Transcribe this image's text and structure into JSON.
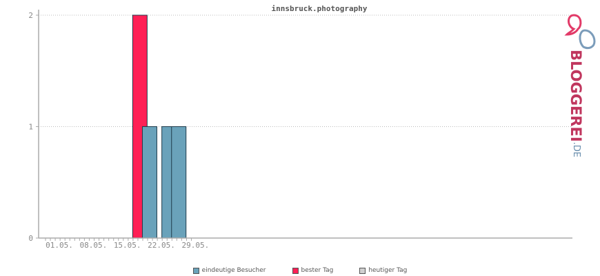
{
  "logo": {
    "main": "BLOGGEREI",
    "tld": ".DE"
  },
  "legend": {
    "items": [
      {
        "label": "eindeutige Besucher",
        "color": "#6aa2ba"
      },
      {
        "label": "bester Tag",
        "color": "#ff1f55"
      },
      {
        "label": "heutiger Tag",
        "color": "#d0d0d0"
      }
    ]
  },
  "chart_data": {
    "type": "bar",
    "title": "innsbruck.photography",
    "xlabel": "",
    "ylabel": "",
    "ylim": [
      0,
      2
    ],
    "yticks": [
      0,
      1,
      2
    ],
    "grid": true,
    "legend_position": "bottom",
    "x_tick_labels": [
      "01.05.",
      "08.05.",
      "15.05.",
      "22.05.",
      "29.05."
    ],
    "days": [
      "01.05.",
      "02.05.",
      "03.05.",
      "04.05.",
      "05.05.",
      "06.05.",
      "07.05.",
      "08.05.",
      "09.05.",
      "10.05.",
      "11.05.",
      "12.05.",
      "13.05.",
      "14.05.",
      "15.05.",
      "16.05.",
      "17.05.",
      "18.05.",
      "19.05.",
      "20.05.",
      "21.05.",
      "22.05.",
      "23.05.",
      "24.05.",
      "25.05.",
      "26.05.",
      "27.05.",
      "28.05.",
      "29.05.",
      "30.05.",
      "31.05."
    ],
    "values": [
      0,
      0,
      0,
      0,
      0,
      0,
      0,
      0,
      0,
      0,
      0,
      0,
      0,
      0,
      0,
      0,
      0,
      2,
      0,
      1,
      0,
      0,
      0,
      1,
      0,
      1,
      0,
      0,
      0,
      0,
      0
    ],
    "best_day": "18.05.",
    "colors": {
      "visitors": "#6aa2ba",
      "best": "#ff1f55",
      "today": "#d0d0d0",
      "bar_stroke": "#1e3a4a",
      "grid": "#bbbbbb",
      "axis": "#aaaaaa"
    }
  }
}
